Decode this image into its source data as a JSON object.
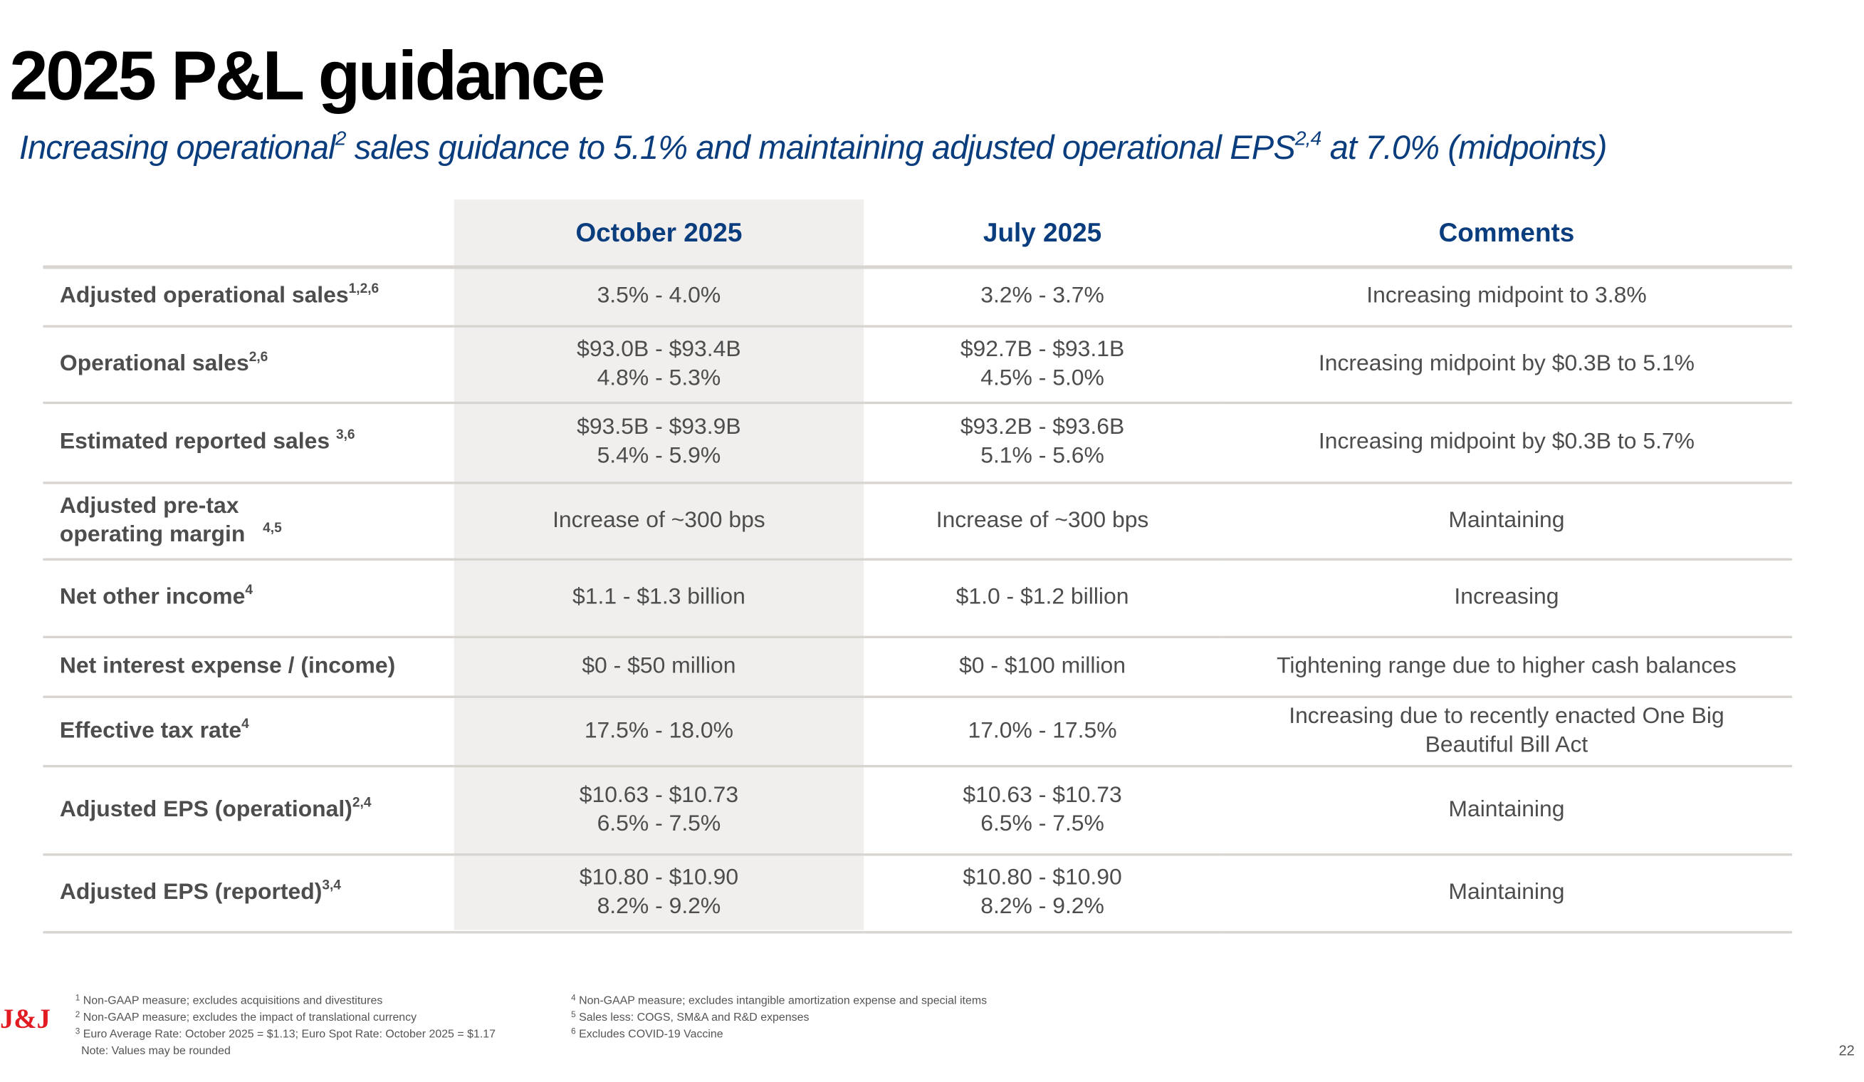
{
  "title": "2025 P&L guidance",
  "subtitle": {
    "part1": "Increasing operational",
    "sup1": "2",
    "part2": " sales guidance to 5.1% and maintaining adjusted operational EPS",
    "sup2": "2,4",
    "part3": " at 7.0% (midpoints)"
  },
  "table": {
    "headers": [
      "",
      "October 2025",
      "July 2025",
      "Comments"
    ],
    "rows": [
      {
        "label": "Adjusted operational sales",
        "sup": "1,2,6",
        "oct": [
          "3.5% - 4.0%"
        ],
        "jul": [
          "3.2% - 3.7%"
        ],
        "comment": [
          "Increasing midpoint to 3.8%"
        ]
      },
      {
        "label": "Operational sales",
        "sup": "2,6",
        "oct": [
          "$93.0B - $93.4B",
          "4.8% - 5.3%"
        ],
        "jul": [
          "$92.7B - $93.1B",
          "4.5% - 5.0%"
        ],
        "comment": [
          "Increasing midpoint by $0.3B to 5.1%"
        ]
      },
      {
        "label": "Estimated reported sales ",
        "sup": "3,6",
        "oct": [
          "$93.5B - $93.9B",
          "5.4% - 5.9%"
        ],
        "jul": [
          "$93.2B - $93.6B",
          "5.1% - 5.6%"
        ],
        "comment": [
          "Increasing midpoint by $0.3B to 5.7%"
        ]
      },
      {
        "label": "Adjusted pre-tax operating margin",
        "sup": "4,5",
        "oct": [
          "Increase of ~300 bps"
        ],
        "jul": [
          "Increase of ~300 bps"
        ],
        "comment": [
          "Maintaining"
        ]
      },
      {
        "label": "Net other income",
        "sup": "4",
        "oct": [
          "$1.1 - $1.3 billion"
        ],
        "jul": [
          "$1.0 - $1.2 billion"
        ],
        "comment": [
          "Increasing"
        ]
      },
      {
        "label": "Net interest expense / (income)",
        "sup": "",
        "oct": [
          "$0 - $50 million"
        ],
        "jul": [
          "$0 - $100 million"
        ],
        "comment": [
          "Tightening range due to higher cash balances"
        ]
      },
      {
        "label": "Effective tax rate",
        "sup": "4",
        "oct": [
          "17.5% - 18.0%"
        ],
        "jul": [
          "17.0% - 17.5%"
        ],
        "comment": [
          "Increasing due to recently enacted One Big",
          "Beautiful Bill Act"
        ]
      },
      {
        "label": "Adjusted EPS (operational)",
        "sup": "2,4",
        "oct": [
          "$10.63 - $10.73",
          "6.5% - 7.5%"
        ],
        "jul": [
          "$10.63 - $10.73",
          "6.5% - 7.5%"
        ],
        "comment": [
          "Maintaining"
        ]
      },
      {
        "label": "Adjusted EPS (reported)",
        "sup": "3,4",
        "oct": [
          "$10.80 - $10.90",
          "8.2% - 9.2%"
        ],
        "jul": [
          "$10.80 - $10.90",
          "8.2% - 9.2%"
        ],
        "comment": [
          "Maintaining"
        ]
      }
    ]
  },
  "footnotes_left": [
    {
      "n": "1",
      "t": "Non-GAAP measure; excludes acquisitions and divestitures"
    },
    {
      "n": "2",
      "t": "Non-GAAP measure; excludes the impact of translational currency"
    },
    {
      "n": "3",
      "t": "Euro Average Rate:  October 2025 = $1.13; Euro Spot Rate: October 2025 = $1.17"
    },
    {
      "n": "",
      "t": "Note: Values may be rounded"
    }
  ],
  "footnotes_right": [
    {
      "n": "4",
      "t": "Non-GAAP measure; excludes intangible amortization expense and special items"
    },
    {
      "n": "5",
      "t": "Sales less: COGS, SM&A and R&D expenses"
    },
    {
      "n": "6",
      "t": "Excludes COVID-19 Vaccine"
    }
  ],
  "logo_text": "J&J",
  "page_number": "22",
  "colors": {
    "accent": "#0a3d7e",
    "logo": "#e21b23",
    "highlight_column": "#f0efed"
  }
}
